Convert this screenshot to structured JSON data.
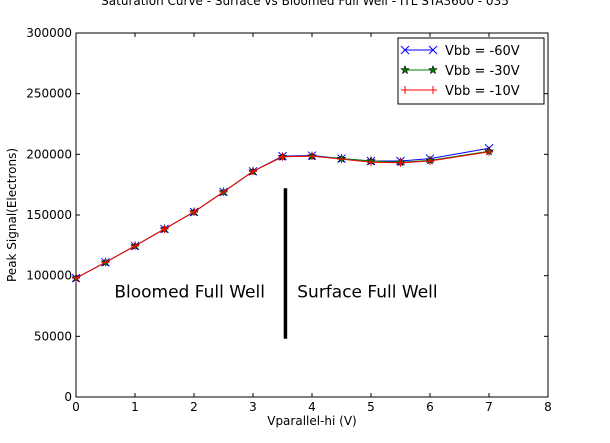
{
  "chart_data": {
    "type": "line",
    "title": "Saturation Curve - Surface vs Bloomed Full Well - ITL STA3600 - 035",
    "xlabel": "Vparallel-hi (V)",
    "ylabel": "Peak Signal(Electrons)",
    "xlim": [
      0,
      8
    ],
    "ylim": [
      0,
      300000
    ],
    "x_ticks": [
      "0",
      "1",
      "2",
      "3",
      "4",
      "5",
      "6",
      "7",
      "8"
    ],
    "y_ticks": [
      "0",
      "50000",
      "100000",
      "150000",
      "200000",
      "250000",
      "300000"
    ],
    "x": [
      0,
      0.5,
      1,
      1.5,
      2,
      2.5,
      3,
      3.5,
      4,
      4.5,
      5,
      5.5,
      6,
      7
    ],
    "series": [
      {
        "name": "Vbb = -60V",
        "color": "#0000ff",
        "marker": "x",
        "values": [
          98000,
          111000,
          124500,
          138500,
          152500,
          169000,
          186000,
          198500,
          199000,
          196500,
          194500,
          194500,
          196500,
          205000
        ]
      },
      {
        "name": "Vbb = -30V",
        "color": "#007f00",
        "marker": "star",
        "values": [
          98000,
          111000,
          124500,
          138500,
          152500,
          169000,
          186000,
          198000,
          198500,
          196500,
          194500,
          193500,
          195000,
          202500
        ]
      },
      {
        "name": "Vbb = -10V",
        "color": "#ff0000",
        "marker": "plus",
        "values": [
          98000,
          111000,
          124500,
          138500,
          152500,
          169000,
          186000,
          198000,
          198500,
          196000,
          193500,
          193000,
          194500,
          202000
        ]
      }
    ],
    "divider": {
      "x": 3.55,
      "y_from": 48000,
      "y_to": 172000
    },
    "annotations": [
      {
        "text": "Bloomed Full Well",
        "x": 0.65,
        "y": 82000
      },
      {
        "text": "Surface Full Well",
        "x": 3.75,
        "y": 82000
      }
    ],
    "legend_position": "top-right"
  }
}
